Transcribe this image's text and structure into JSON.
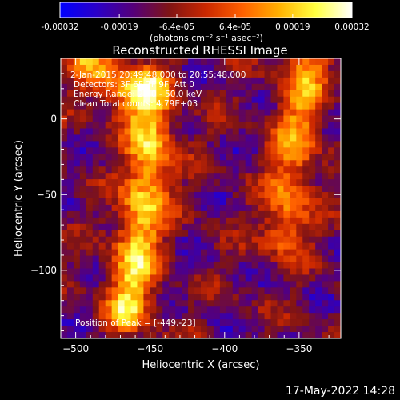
{
  "chart_data": {
    "type": "heatmap",
    "title": "Reconstructed RHESSI Image",
    "xlabel": "Heliocentric X (arcsec)",
    "ylabel": "Heliocentric Y (arcsec)",
    "xlim": [
      -510,
      -322
    ],
    "ylim": [
      -145,
      40
    ],
    "x_ticks": [
      -500,
      -450,
      -400,
      -350
    ],
    "y_ticks": [
      0,
      -50,
      -100
    ],
    "colorbar": {
      "range": [
        -0.00032,
        0.00032
      ],
      "tick_labels": [
        "-0.00032",
        "-0.00019",
        "-6.4e-05",
        "6.4e-05",
        "0.00019",
        "0.00032"
      ],
      "unit_label": "(photons cm⁻² s⁻¹ asec⁻²)",
      "stops": [
        "#0000ff",
        "#2a00c8",
        "#55007a",
        "#801414",
        "#cc2800",
        "#ff6000",
        "#ffb000",
        "#ffff40",
        "#ffffff"
      ]
    },
    "annotations": {
      "time_range": "2-Jan-2015 20:49:48.000 to 20:55:48.000",
      "detectors": "Detectors: 3F 6F 7F 9F, Att 0",
      "energy": "Energy Range: 25.0 - 50.0 keV",
      "clean": "Clean     Total counts: 4.79E+03",
      "peak": "Position of Peak = [-449,-23]"
    },
    "sources": [
      {
        "path": [
          [
            -450,
            20
          ],
          [
            -450,
            -25
          ],
          [
            -455,
            -60
          ],
          [
            -460,
            -90
          ],
          [
            -465,
            -125
          ]
        ],
        "peak": 0.00032
      },
      {
        "path": [
          [
            -345,
            35
          ],
          [
            -350,
            0
          ],
          [
            -355,
            -40
          ],
          [
            -360,
            -75
          ]
        ],
        "peak": 0.00023
      },
      {
        "path": [
          [
            -490,
            35
          ],
          [
            -470,
            18
          ]
        ],
        "peak": 0.00022
      }
    ]
  },
  "timestamp": "17-May-2022 14:28"
}
